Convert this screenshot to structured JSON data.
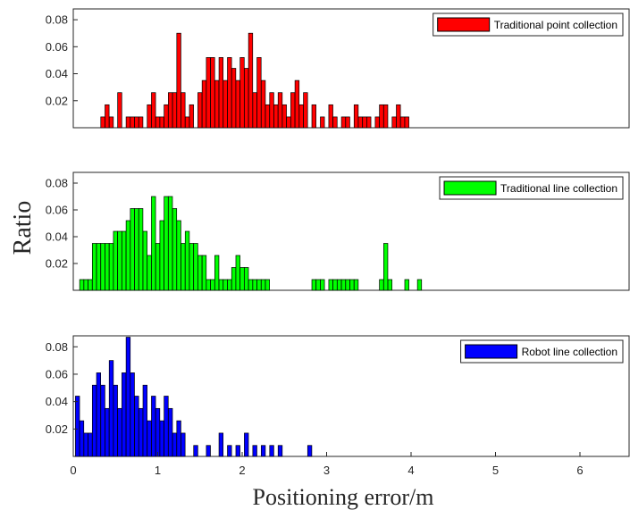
{
  "figure": {
    "ylabel": "Ratio",
    "xlabel": "Positioning error/m"
  },
  "chart_data": [
    {
      "type": "bar",
      "legend": "Traditional point collection",
      "color": "#ff0000",
      "legend_position": "top-right",
      "grid": false,
      "xlim": [
        0,
        6.65
      ],
      "ylim": [
        0,
        0.088
      ],
      "yticks": [
        "0.02",
        "0.04",
        "0.06",
        "0.08"
      ],
      "x": [
        0.35,
        0.4,
        0.45,
        0.55,
        0.65,
        0.7,
        0.75,
        0.8,
        0.9,
        0.95,
        1.0,
        1.05,
        1.1,
        1.15,
        1.2,
        1.25,
        1.3,
        1.35,
        1.4,
        1.5,
        1.55,
        1.6,
        1.65,
        1.7,
        1.75,
        1.8,
        1.85,
        1.9,
        1.95,
        2.0,
        2.05,
        2.1,
        2.15,
        2.2,
        2.25,
        2.3,
        2.35,
        2.4,
        2.45,
        2.5,
        2.55,
        2.6,
        2.65,
        2.7,
        2.75,
        2.85,
        2.95,
        3.05,
        3.1,
        3.2,
        3.25,
        3.35,
        3.4,
        3.45,
        3.5,
        3.6,
        3.65,
        3.7,
        3.8,
        3.85,
        3.9,
        3.95
      ],
      "y": [
        0.008,
        0.017,
        0.008,
        0.026,
        0.008,
        0.008,
        0.008,
        0.008,
        0.017,
        0.026,
        0.008,
        0.008,
        0.017,
        0.026,
        0.026,
        0.07,
        0.026,
        0.008,
        0.017,
        0.026,
        0.035,
        0.052,
        0.052,
        0.035,
        0.052,
        0.035,
        0.052,
        0.044,
        0.035,
        0.052,
        0.044,
        0.07,
        0.026,
        0.052,
        0.035,
        0.017,
        0.026,
        0.017,
        0.026,
        0.017,
        0.008,
        0.026,
        0.035,
        0.017,
        0.026,
        0.017,
        0.008,
        0.017,
        0.008,
        0.008,
        0.008,
        0.017,
        0.008,
        0.008,
        0.008,
        0.008,
        0.017,
        0.017,
        0.008,
        0.017,
        0.008,
        0.008
      ]
    },
    {
      "type": "bar",
      "legend": "Traditional line collection",
      "color": "#00ff00",
      "legend_position": "top-right",
      "grid": false,
      "xlim": [
        0,
        6.65
      ],
      "ylim": [
        0,
        0.088
      ],
      "yticks": [
        "0.02",
        "0.04",
        "0.06",
        "0.08"
      ],
      "x": [
        0.1,
        0.15,
        0.2,
        0.25,
        0.3,
        0.35,
        0.4,
        0.45,
        0.5,
        0.55,
        0.6,
        0.65,
        0.7,
        0.75,
        0.8,
        0.85,
        0.9,
        0.95,
        1.0,
        1.05,
        1.1,
        1.15,
        1.2,
        1.25,
        1.3,
        1.35,
        1.4,
        1.45,
        1.5,
        1.55,
        1.6,
        1.65,
        1.7,
        1.75,
        1.8,
        1.85,
        1.9,
        1.95,
        2.0,
        2.05,
        2.1,
        2.15,
        2.2,
        2.25,
        2.3,
        2.85,
        2.9,
        2.95,
        3.05,
        3.1,
        3.15,
        3.2,
        3.25,
        3.3,
        3.35,
        3.65,
        3.7,
        3.75,
        3.95,
        4.1
      ],
      "y": [
        0.008,
        0.008,
        0.008,
        0.035,
        0.035,
        0.035,
        0.035,
        0.035,
        0.044,
        0.044,
        0.044,
        0.052,
        0.061,
        0.061,
        0.061,
        0.044,
        0.026,
        0.07,
        0.035,
        0.052,
        0.07,
        0.07,
        0.061,
        0.052,
        0.035,
        0.044,
        0.035,
        0.035,
        0.026,
        0.026,
        0.008,
        0.008,
        0.026,
        0.008,
        0.008,
        0.008,
        0.017,
        0.026,
        0.017,
        0.017,
        0.008,
        0.008,
        0.008,
        0.008,
        0.008,
        0.008,
        0.008,
        0.008,
        0.008,
        0.008,
        0.008,
        0.008,
        0.008,
        0.008,
        0.008,
        0.008,
        0.035,
        0.008,
        0.008,
        0.008
      ]
    },
    {
      "type": "bar",
      "legend": "Robot line collection",
      "color": "#0000ff",
      "legend_position": "top-right",
      "grid": false,
      "xlim": [
        0,
        6.65
      ],
      "ylim": [
        0,
        0.088
      ],
      "yticks": [
        "0.02",
        "0.04",
        "0.06",
        "0.08"
      ],
      "xticks": [
        "0",
        "1",
        "2",
        "3",
        "4",
        "5",
        "6"
      ],
      "x": [
        0.05,
        0.1,
        0.15,
        0.2,
        0.25,
        0.3,
        0.35,
        0.4,
        0.45,
        0.5,
        0.55,
        0.6,
        0.65,
        0.7,
        0.75,
        0.8,
        0.85,
        0.9,
        0.95,
        1.0,
        1.05,
        1.1,
        1.15,
        1.2,
        1.25,
        1.3,
        1.45,
        1.6,
        1.75,
        1.85,
        1.95,
        2.05,
        2.15,
        2.25,
        2.35,
        2.45,
        2.8
      ],
      "y": [
        0.044,
        0.026,
        0.017,
        0.017,
        0.052,
        0.061,
        0.052,
        0.035,
        0.07,
        0.052,
        0.035,
        0.061,
        0.087,
        0.061,
        0.044,
        0.035,
        0.052,
        0.026,
        0.044,
        0.035,
        0.026,
        0.044,
        0.035,
        0.017,
        0.026,
        0.017,
        0.008,
        0.008,
        0.017,
        0.008,
        0.008,
        0.017,
        0.008,
        0.008,
        0.008,
        0.008,
        0.008
      ]
    }
  ]
}
